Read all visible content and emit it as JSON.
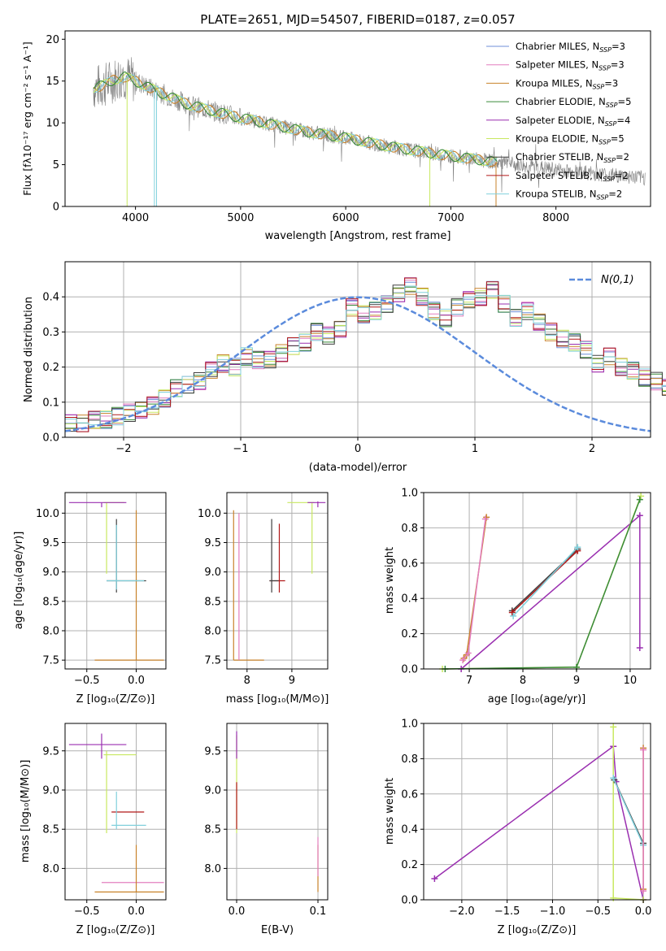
{
  "figure_title": "PLATE=2651, MJD=54507, FIBERID=0187, z=0.057",
  "colors": {
    "chabrier_miles": "#6f8fd8",
    "salpeter_miles": "#e37fbf",
    "kroupa_miles": "#c8822a",
    "chabrier_elodie": "#3a8a3a",
    "salpeter_elodie": "#9a2fb0",
    "kroupa_elodie": "#c8e860",
    "chabrier_stelib": "#404040",
    "salpeter_stelib": "#b01818",
    "kroupa_stelib": "#80d0dc",
    "normal_curve": "#5b8bdc",
    "data": "#808080",
    "grid": "#b0b0b0"
  },
  "chart_data": [
    {
      "id": "spectrum",
      "type": "line",
      "title": "",
      "xlabel": "wavelength [Angstrom, rest frame]",
      "ylabel": "Flux [fλ10⁻¹⁷ erg cm⁻² s⁻¹ A⁻¹]",
      "xlim": [
        3330,
        8900
      ],
      "ylim": [
        0,
        21
      ],
      "xticks": [
        4000,
        5000,
        6000,
        7000,
        8000
      ],
      "yticks": [
        0,
        5,
        10,
        15,
        20
      ],
      "grid": false,
      "legend_position": "top-right",
      "legend": [
        "Chabrier MILES, N_SSP=3",
        "Salpeter MILES, N_SSP=3",
        "Kroupa MILES, N_SSP=3",
        "Chabrier ELODIE, N_SSP=5",
        "Salpeter ELODIE, N_SSP=4",
        "Kroupa ELODIE, N_SSP=5",
        "Chabrier STELIB, N_SSP=2",
        "Salpeter STELIB, N_SSP=2",
        "Kroupa STELIB, N_SSP=2"
      ],
      "continuum": {
        "x": [
          3600,
          3700,
          3800,
          3900,
          4000,
          4200,
          4500,
          4800,
          5000,
          5300,
          5600,
          6000,
          6400,
          6800,
          7200,
          7600,
          8000,
          8400,
          8850
        ],
        "y": [
          14.2,
          14.5,
          15.2,
          15.5,
          15.0,
          13.8,
          12.2,
          11.2,
          10.6,
          9.8,
          9.0,
          8.2,
          7.2,
          6.4,
          5.7,
          5.0,
          4.4,
          3.9,
          3.4
        ]
      }
    },
    {
      "id": "residuals",
      "type": "bar",
      "title": "",
      "xlabel": "(data-model)/error",
      "ylabel": "Normed distribution",
      "xlim": [
        -2.5,
        2.5
      ],
      "ylim": [
        0,
        0.5
      ],
      "xticks": [
        -2,
        -1,
        0,
        1,
        2
      ],
      "yticks": [
        0.0,
        0.1,
        0.2,
        0.3,
        0.4
      ],
      "grid": true,
      "legend_position": "top-right",
      "legend": [
        "N(0,1)"
      ],
      "bin_width": 0.1,
      "bin_start": -2.5,
      "hist_values": [
        0.04,
        0.04,
        0.05,
        0.05,
        0.06,
        0.07,
        0.08,
        0.09,
        0.11,
        0.14,
        0.15,
        0.16,
        0.19,
        0.21,
        0.2,
        0.23,
        0.22,
        0.22,
        0.24,
        0.26,
        0.27,
        0.3,
        0.29,
        0.31,
        0.37,
        0.35,
        0.36,
        0.38,
        0.41,
        0.43,
        0.4,
        0.36,
        0.34,
        0.37,
        0.39,
        0.4,
        0.42,
        0.38,
        0.34,
        0.36,
        0.33,
        0.3,
        0.28,
        0.27,
        0.25,
        0.21,
        0.23,
        0.2,
        0.19,
        0.17,
        0.16,
        0.14,
        0.13,
        0.1,
        0.09,
        0.08,
        0.07,
        0.06,
        0.04,
        0.04
      ]
    },
    {
      "id": "age_vs_Z",
      "type": "scatter",
      "xlabel": "Z [log₁₀(Z/Z⊙)]",
      "ylabel": "age [log₁₀(age/yr)]",
      "xlim": [
        -0.72,
        0.3
      ],
      "ylim": [
        7.35,
        10.35
      ],
      "xticks": [
        -0.5,
        0.0
      ],
      "yticks": [
        7.5,
        8.0,
        8.5,
        9.0,
        9.5,
        10.0
      ],
      "grid": true,
      "points": [
        {
          "color": "kroupa_elodie",
          "x": -0.3,
          "y": 10.18,
          "x0": -0.33,
          "x1": -0.12,
          "y0": 8.97,
          "y1": 10.18
        },
        {
          "color": "salpeter_elodie",
          "x": -0.35,
          "y": 10.18,
          "x0": -0.68,
          "x1": -0.1,
          "y0": 10.1,
          "y1": 10.18
        },
        {
          "color": "kroupa_miles",
          "x": 0.0,
          "y": 7.5,
          "x0": -0.42,
          "x1": 0.28,
          "y0": 7.5,
          "y1": 10.05
        },
        {
          "color": "chabrier_stelib",
          "x": -0.2,
          "y": 8.85,
          "x0": -0.3,
          "x1": 0.1,
          "y0": 8.65,
          "y1": 9.9
        },
        {
          "color": "kroupa_stelib",
          "x": -0.2,
          "y": 8.85,
          "x0": -0.3,
          "x1": 0.08,
          "y0": 8.7,
          "y1": 9.8
        }
      ]
    },
    {
      "id": "age_vs_mass",
      "type": "scatter",
      "xlabel": "mass [log₁₀(M/M⊙)]",
      "ylabel": "",
      "xlim": [
        7.55,
        9.8
      ],
      "ylim": [
        7.35,
        10.35
      ],
      "xticks": [
        8,
        9
      ],
      "yticks": [
        7.5,
        8.0,
        8.5,
        9.0,
        9.5,
        10.0
      ],
      "grid": true,
      "points": [
        {
          "color": "kroupa_miles",
          "x": 7.7,
          "y": 7.5,
          "x0": 7.7,
          "x1": 8.38,
          "y0": 7.5,
          "y1": 10.05
        },
        {
          "color": "salpeter_miles",
          "x": 7.82,
          "y": 10.0,
          "x0": 7.82,
          "x1": 7.82,
          "y0": 7.5,
          "y1": 10.0
        },
        {
          "color": "salpeter_stelib",
          "x": 8.72,
          "y": 8.85,
          "x0": 8.5,
          "x1": 8.85,
          "y0": 8.65,
          "y1": 9.82
        },
        {
          "color": "chabrier_stelib",
          "x": 8.55,
          "y": 8.85,
          "x0": 8.5,
          "x1": 8.7,
          "y0": 8.65,
          "y1": 9.9
        },
        {
          "color": "kroupa_elodie",
          "x": 9.45,
          "y": 10.18,
          "x0": 8.9,
          "x1": 9.5,
          "y0": 8.97,
          "y1": 10.18
        },
        {
          "color": "salpeter_elodie",
          "x": 9.58,
          "y": 10.18,
          "x0": 9.35,
          "x1": 9.75,
          "y0": 10.1,
          "y1": 10.2
        }
      ]
    },
    {
      "id": "weight_vs_age",
      "type": "line",
      "xlabel": "age [log₁₀(age/yr)]",
      "ylabel": "mass weight",
      "xlim": [
        6.15,
        10.38
      ],
      "ylim": [
        0,
        1.0
      ],
      "xticks": [
        7,
        8,
        9,
        10
      ],
      "yticks": [
        0.0,
        0.2,
        0.4,
        0.6,
        0.8,
        1.0
      ],
      "grid": true,
      "series": [
        {
          "color": "kroupa_miles",
          "x": [
            6.9,
            6.95,
            7.32
          ],
          "y": [
            0.06,
            0.08,
            0.86
          ]
        },
        {
          "color": "salpeter_miles",
          "x": [
            6.88,
            6.98,
            7.3
          ],
          "y": [
            0.05,
            0.09,
            0.85
          ]
        },
        {
          "color": "chabrier_stelib",
          "x": [
            7.8,
            9.02
          ],
          "y": [
            0.33,
            0.68
          ]
        },
        {
          "color": "salpeter_stelib",
          "x": [
            7.8,
            9.02
          ],
          "y": [
            0.32,
            0.67
          ]
        },
        {
          "color": "kroupa_stelib",
          "x": [
            7.82,
            9.02
          ],
          "y": [
            0.3,
            0.69
          ]
        },
        {
          "color": "salpeter_elodie",
          "x": [
            6.85,
            10.18,
            10.18
          ],
          "y": [
            0.0,
            0.87,
            0.12
          ]
        },
        {
          "color": "kroupa_elodie",
          "x": [
            6.5,
            9.0,
            10.2
          ],
          "y": [
            0.0,
            0.01,
            0.98
          ]
        },
        {
          "color": "chabrier_elodie",
          "x": [
            6.55,
            9.0,
            10.18
          ],
          "y": [
            0.0,
            0.01,
            0.96
          ]
        }
      ]
    },
    {
      "id": "mass_vs_Z",
      "type": "scatter",
      "xlabel": "Z [log₁₀(Z/Z⊙)]",
      "ylabel": "mass [log₁₀(M/M⊙)]",
      "xlim": [
        -0.72,
        0.3
      ],
      "ylim": [
        7.6,
        9.85
      ],
      "xticks": [
        -0.5,
        0.0
      ],
      "yticks": [
        8.0,
        8.5,
        9.0,
        9.5
      ],
      "grid": true,
      "points": [
        {
          "color": "salpeter_elodie",
          "x": -0.35,
          "y": 9.58,
          "x0": -0.68,
          "x1": -0.1,
          "y0": 9.4,
          "y1": 9.72
        },
        {
          "color": "kroupa_elodie",
          "x": -0.3,
          "y": 9.45,
          "x0": -0.33,
          "x1": 0.0,
          "y0": 8.45,
          "y1": 9.5
        },
        {
          "color": "salpeter_stelib",
          "x": -0.1,
          "y": 8.72,
          "x0": -0.25,
          "x1": 0.08,
          "y0": 8.72,
          "y1": 8.72
        },
        {
          "color": "kroupa_stelib",
          "x": -0.2,
          "y": 8.55,
          "x0": -0.25,
          "x1": 0.1,
          "y0": 8.5,
          "y1": 8.98
        },
        {
          "color": "salpeter_miles",
          "x": 0.0,
          "y": 7.82,
          "x0": -0.35,
          "x1": 0.28,
          "y0": 7.82,
          "y1": 7.82
        },
        {
          "color": "kroupa_miles",
          "x": 0.0,
          "y": 7.7,
          "x0": -0.42,
          "x1": 0.28,
          "y0": 7.7,
          "y1": 8.3
        }
      ]
    },
    {
      "id": "mass_vs_ebv",
      "type": "scatter",
      "xlabel": "E(B-V)",
      "ylabel": "",
      "xlim": [
        -0.012,
        0.112
      ],
      "ylim": [
        7.6,
        9.85
      ],
      "xticks": [
        0.0,
        0.1
      ],
      "yticks": [
        8.0,
        8.5,
        9.0,
        9.5
      ],
      "grid": true,
      "points": [
        {
          "color": "kroupa_elodie",
          "x": 0.0,
          "y": 9.45,
          "x0": 0.0,
          "x1": 0.0,
          "y0": 8.45,
          "y1": 9.7
        },
        {
          "color": "salpeter_elodie",
          "x": 0.0,
          "y": 9.6,
          "x0": 0.0,
          "x1": 0.0,
          "y0": 9.4,
          "y1": 9.75
        },
        {
          "color": "salpeter_stelib",
          "x": 0.0,
          "y": 8.72,
          "x0": 0.0,
          "x1": 0.0,
          "y0": 8.5,
          "y1": 9.1
        },
        {
          "color": "kroupa_miles",
          "x": 0.1,
          "y": 7.8,
          "x0": 0.1,
          "x1": 0.1,
          "y0": 7.7,
          "y1": 8.3
        },
        {
          "color": "salpeter_miles",
          "x": 0.1,
          "y": 8.2,
          "x0": 0.1,
          "x1": 0.1,
          "y0": 7.9,
          "y1": 8.4
        }
      ]
    },
    {
      "id": "weight_vs_Z",
      "type": "line",
      "xlabel": "Z [log₁₀(Z/Z⊙)]",
      "ylabel": "mass weight",
      "xlim": [
        -2.42,
        0.08
      ],
      "ylim": [
        0,
        1.0
      ],
      "xticks": [
        -2.0,
        -1.5,
        -1.0,
        -0.5,
        0.0
      ],
      "yticks": [
        0.0,
        0.2,
        0.4,
        0.6,
        0.8,
        1.0
      ],
      "grid": true,
      "series": [
        {
          "color": "salpeter_elodie",
          "x": [
            -2.3,
            -0.33,
            -0.3,
            0.0
          ],
          "y": [
            0.12,
            0.87,
            0.67,
            0.0
          ]
        },
        {
          "color": "kroupa_elodie",
          "x": [
            -0.33,
            -0.33,
            0.0
          ],
          "y": [
            0.98,
            0.01,
            0.0
          ]
        },
        {
          "color": "chabrier_stelib",
          "x": [
            -0.32,
            0.0
          ],
          "y": [
            0.68,
            0.32
          ]
        },
        {
          "color": "kroupa_stelib",
          "x": [
            -0.33,
            0.0
          ],
          "y": [
            0.69,
            0.31
          ]
        },
        {
          "color": "kroupa_miles",
          "x": [
            0.0,
            0.0
          ],
          "y": [
            0.06,
            0.86
          ]
        },
        {
          "color": "salpeter_miles",
          "x": [
            0.0,
            0.0
          ],
          "y": [
            0.05,
            0.85
          ]
        }
      ]
    }
  ]
}
